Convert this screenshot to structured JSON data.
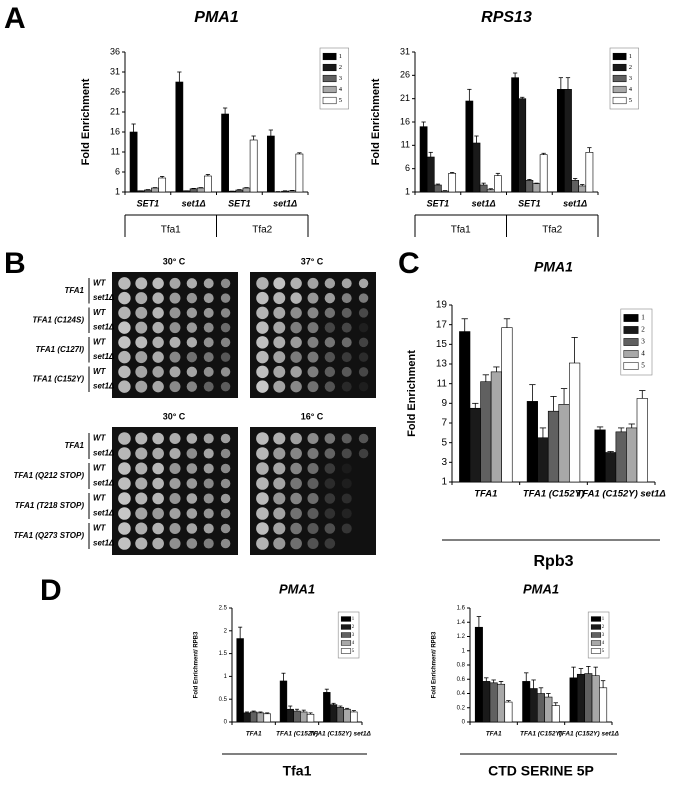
{
  "panels": [
    "A",
    "B",
    "C",
    "D"
  ],
  "spot_assay": {
    "genotypes": [
      "WT",
      "set1Δ"
    ],
    "top": {
      "temps": [
        "30° C",
        "37° C"
      ],
      "strains": [
        "TFA1",
        "TFA1 (C124S)",
        "TFA1 (C127I)",
        "TFA1 (C152Y)"
      ]
    },
    "bottom": {
      "temps": [
        "30° C",
        "16° C"
      ],
      "strains": [
        "TFA1",
        "TFA1 (Q212 STOP)",
        "TFA1 (T218 STOP)",
        "TFA1 (Q273 STOP)"
      ]
    }
  },
  "chart_data": [
    {
      "type": "bar",
      "title": "PMA1",
      "ylabel": "Fold Enrichment",
      "categories": [
        "SET1",
        "set1Δ",
        "SET1",
        "set1Δ"
      ],
      "group_labels": [
        "Tfa1",
        "Tfa2"
      ],
      "ylim": [
        1,
        36
      ],
      "yticks": [
        1,
        6,
        11,
        16,
        21,
        26,
        31,
        36
      ],
      "legend": "right",
      "series": [
        {
          "name": "1",
          "color": "#000000",
          "values": [
            16,
            28.5,
            20.5,
            15
          ],
          "errors": [
            2,
            2.5,
            1.5,
            1.5
          ]
        },
        {
          "name": "2",
          "color": "#1a1a1a",
          "values": [
            1.3,
            1.3,
            1.2,
            1
          ],
          "errors": [
            0,
            0,
            0,
            0.1
          ]
        },
        {
          "name": "3",
          "color": "#606060",
          "values": [
            1.5,
            1.8,
            1.5,
            1.2
          ],
          "errors": [
            0.1,
            0.1,
            0.1,
            0.1
          ]
        },
        {
          "name": "4",
          "color": "#a8a8a8",
          "values": [
            2,
            2,
            2,
            1.3
          ],
          "errors": [
            0.1,
            0.1,
            0.1,
            0.1
          ]
        },
        {
          "name": "5",
          "color": "#ffffff",
          "values": [
            4.5,
            5,
            14,
            10.5
          ],
          "errors": [
            0.4,
            0.4,
            1,
            0.3
          ]
        }
      ]
    },
    {
      "type": "bar",
      "title": "RPS13",
      "ylabel": "Fold Enrichment",
      "categories": [
        "SET1",
        "set1Δ",
        "SET1",
        "set1Δ"
      ],
      "group_labels": [
        "Tfa1",
        "Tfa2"
      ],
      "ylim": [
        1,
        31
      ],
      "yticks": [
        1,
        6,
        11,
        16,
        21,
        26,
        31
      ],
      "legend": "right",
      "series": [
        {
          "name": "1",
          "color": "#000000",
          "values": [
            15,
            20.5,
            25.5,
            23
          ],
          "errors": [
            1,
            2.5,
            1,
            2.5
          ]
        },
        {
          "name": "2",
          "color": "#1a1a1a",
          "values": [
            8.5,
            11.5,
            21,
            23
          ],
          "errors": [
            1,
            1.5,
            0.3,
            2.5
          ]
        },
        {
          "name": "3",
          "color": "#606060",
          "values": [
            2.5,
            2.5,
            3.5,
            3.5
          ],
          "errors": [
            0.2,
            0.4,
            0.2,
            0.4
          ]
        },
        {
          "name": "4",
          "color": "#a8a8a8",
          "values": [
            1.2,
            1.5,
            2.8,
            2.3
          ],
          "errors": [
            0.1,
            0.2,
            0.1,
            0.3
          ]
        },
        {
          "name": "5",
          "color": "#ffffff",
          "values": [
            5,
            4.5,
            9,
            9.5
          ],
          "errors": [
            0.2,
            0.5,
            0.3,
            1
          ]
        }
      ]
    },
    {
      "type": "bar",
      "title": "PMA1",
      "ylabel": "Fold Enrichment",
      "categories": [
        "TFA1",
        "TFA1 (C152Y)",
        "TFA1 (C152Y) set1Δ"
      ],
      "bottom_label": "Rpb3",
      "ylim": [
        1,
        19
      ],
      "yticks": [
        1,
        3,
        5,
        7,
        9,
        11,
        13,
        15,
        17,
        19
      ],
      "legend": "upper right",
      "series": [
        {
          "name": "1",
          "color": "#000000",
          "values": [
            16.3,
            9.2,
            6.3
          ],
          "errors": [
            1.3,
            1.7,
            0.3
          ]
        },
        {
          "name": "2",
          "color": "#1a1a1a",
          "values": [
            8.5,
            5.5,
            4.0
          ],
          "errors": [
            0.5,
            1,
            0.1
          ]
        },
        {
          "name": "3",
          "color": "#606060",
          "values": [
            11.2,
            8.2,
            6.1
          ],
          "errors": [
            0.7,
            1.5,
            0.4
          ]
        },
        {
          "name": "4",
          "color": "#a8a8a8",
          "values": [
            12.2,
            8.9,
            6.5
          ],
          "errors": [
            0.5,
            1.6,
            0.4
          ]
        },
        {
          "name": "5",
          "color": "#ffffff",
          "values": [
            16.7,
            13.1,
            9.5
          ],
          "errors": [
            0.9,
            2.6,
            0.8
          ]
        }
      ]
    },
    {
      "type": "bar",
      "title": "PMA1",
      "ylabel": "Fold Enrichment/ RPB3",
      "categories": [
        "TFA1",
        "TFA1 (C152Y)",
        "TFA1 (C152Y) set1Δ"
      ],
      "bottom_label": "Tfa1",
      "ylim": [
        0,
        2.5
      ],
      "yticks": [
        0,
        0.5,
        1,
        1.5,
        2,
        2.5
      ],
      "legend": "upper right",
      "series": [
        {
          "name": "1",
          "color": "#000000",
          "values": [
            1.83,
            0.9,
            0.65
          ],
          "errors": [
            0.25,
            0.17,
            0.07
          ]
        },
        {
          "name": "2",
          "color": "#1a1a1a",
          "values": [
            0.2,
            0.28,
            0.38
          ],
          "errors": [
            0.02,
            0.07,
            0.03
          ]
        },
        {
          "name": "3",
          "color": "#606060",
          "values": [
            0.22,
            0.24,
            0.32
          ],
          "errors": [
            0.02,
            0.04,
            0.03
          ]
        },
        {
          "name": "4",
          "color": "#a8a8a8",
          "values": [
            0.2,
            0.22,
            0.28
          ],
          "errors": [
            0.02,
            0.04,
            0.02
          ]
        },
        {
          "name": "5",
          "color": "#ffffff",
          "values": [
            0.18,
            0.17,
            0.22
          ],
          "errors": [
            0.02,
            0.03,
            0.03
          ]
        }
      ]
    },
    {
      "type": "bar",
      "title": "PMA1",
      "ylabel": "Fold Enrichment/ RPB3",
      "categories": [
        "TFA1",
        "TFA1 (C152Y)",
        "TFA1 (C152Y) set1Δ"
      ],
      "bottom_label": "CTD SERINE 5P",
      "ylim": [
        0,
        1.6
      ],
      "yticks": [
        0,
        0.2,
        0.4,
        0.6,
        0.8,
        1,
        1.2,
        1.4,
        1.6
      ],
      "legend": "upper right",
      "series": [
        {
          "name": "1",
          "color": "#000000",
          "values": [
            1.33,
            0.57,
            0.62
          ],
          "errors": [
            0.15,
            0.12,
            0.15
          ]
        },
        {
          "name": "2",
          "color": "#1a1a1a",
          "values": [
            0.57,
            0.47,
            0.67
          ],
          "errors": [
            0.05,
            0.12,
            0.08
          ]
        },
        {
          "name": "3",
          "color": "#606060",
          "values": [
            0.55,
            0.4,
            0.68
          ],
          "errors": [
            0.04,
            0.08,
            0.1
          ]
        },
        {
          "name": "4",
          "color": "#a8a8a8",
          "values": [
            0.53,
            0.35,
            0.65
          ],
          "errors": [
            0.04,
            0.05,
            0.12
          ]
        },
        {
          "name": "5",
          "color": "#ffffff",
          "values": [
            0.28,
            0.23,
            0.48
          ],
          "errors": [
            0.02,
            0.04,
            0.1
          ]
        }
      ]
    }
  ]
}
